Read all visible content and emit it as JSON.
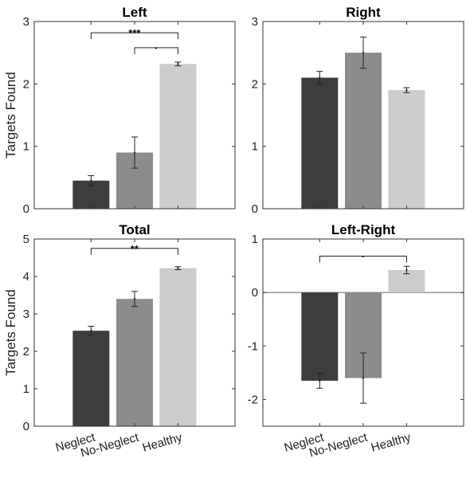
{
  "chart_data": [
    {
      "type": "bar",
      "title": "Left",
      "ylabel": "Targets Found",
      "ylim": [
        0,
        3
      ],
      "yticks": [
        0,
        1,
        2,
        3
      ],
      "categories": [
        "Neglect",
        "No-Neglect",
        "Healthy"
      ],
      "values": [
        0.45,
        0.9,
        2.32
      ],
      "errors": [
        0.08,
        0.25,
        0.03
      ],
      "colors": [
        "#3d3d3d",
        "#8c8c8c",
        "#cccccc"
      ],
      "show_xticklabels": false,
      "significance": [
        {
          "from": 0,
          "to": 2,
          "y": 2.82,
          "label": "***"
        },
        {
          "from": 1,
          "to": 2,
          "y": 2.58,
          "label": "·"
        }
      ]
    },
    {
      "type": "bar",
      "title": "Right",
      "ylabel": "",
      "ylim": [
        0,
        3
      ],
      "yticks": [
        0,
        1,
        2,
        3
      ],
      "categories": [
        "Neglect",
        "No-Neglect",
        "Healthy"
      ],
      "values": [
        2.1,
        2.5,
        1.9
      ],
      "errors": [
        0.1,
        0.25,
        0.04
      ],
      "colors": [
        "#3d3d3d",
        "#8c8c8c",
        "#cccccc"
      ],
      "show_xticklabels": false,
      "significance": []
    },
    {
      "type": "bar",
      "title": "Total",
      "ylabel": "Targets Found",
      "ylim": [
        0,
        5
      ],
      "yticks": [
        0,
        1,
        2,
        3,
        4,
        5
      ],
      "categories": [
        "Neglect",
        "No-Neglect",
        "Healthy"
      ],
      "values": [
        2.55,
        3.4,
        4.22
      ],
      "errors": [
        0.12,
        0.2,
        0.04
      ],
      "colors": [
        "#3d3d3d",
        "#8c8c8c",
        "#cccccc"
      ],
      "show_xticklabels": true,
      "significance": [
        {
          "from": 0,
          "to": 2,
          "y": 4.75,
          "label": "**"
        }
      ]
    },
    {
      "type": "bar",
      "title": "Left-Right",
      "ylabel": "",
      "ylim": [
        -2.5,
        1
      ],
      "yticks": [
        -2,
        -1,
        0,
        1
      ],
      "categories": [
        "Neglect",
        "No-Neglect",
        "Healthy"
      ],
      "values": [
        -1.65,
        -1.6,
        0.42
      ],
      "errors": [
        0.14,
        0.47,
        0.07
      ],
      "colors": [
        "#3d3d3d",
        "#8c8c8c",
        "#cccccc"
      ],
      "show_xticklabels": true,
      "zero_line": true,
      "significance": [
        {
          "from": 0,
          "to": 2,
          "y": 0.68,
          "label": "·"
        }
      ]
    }
  ]
}
